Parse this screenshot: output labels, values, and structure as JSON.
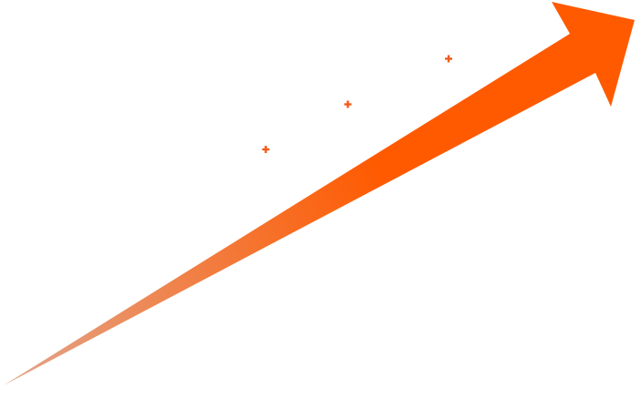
{
  "graphic": {
    "subject": "upward-trend-arrow",
    "colors": {
      "arrow_head": "#FF5A00",
      "arrow_tail": "#E2A58A",
      "sparkle": "#F25A1A",
      "background": "#FFFFFF"
    },
    "sparkles": [
      {
        "name": "plus-sparkle-1",
        "icon": "plus-icon"
      },
      {
        "name": "plus-sparkle-2",
        "icon": "plus-icon"
      },
      {
        "name": "plus-sparkle-3",
        "icon": "plus-icon"
      }
    ]
  }
}
